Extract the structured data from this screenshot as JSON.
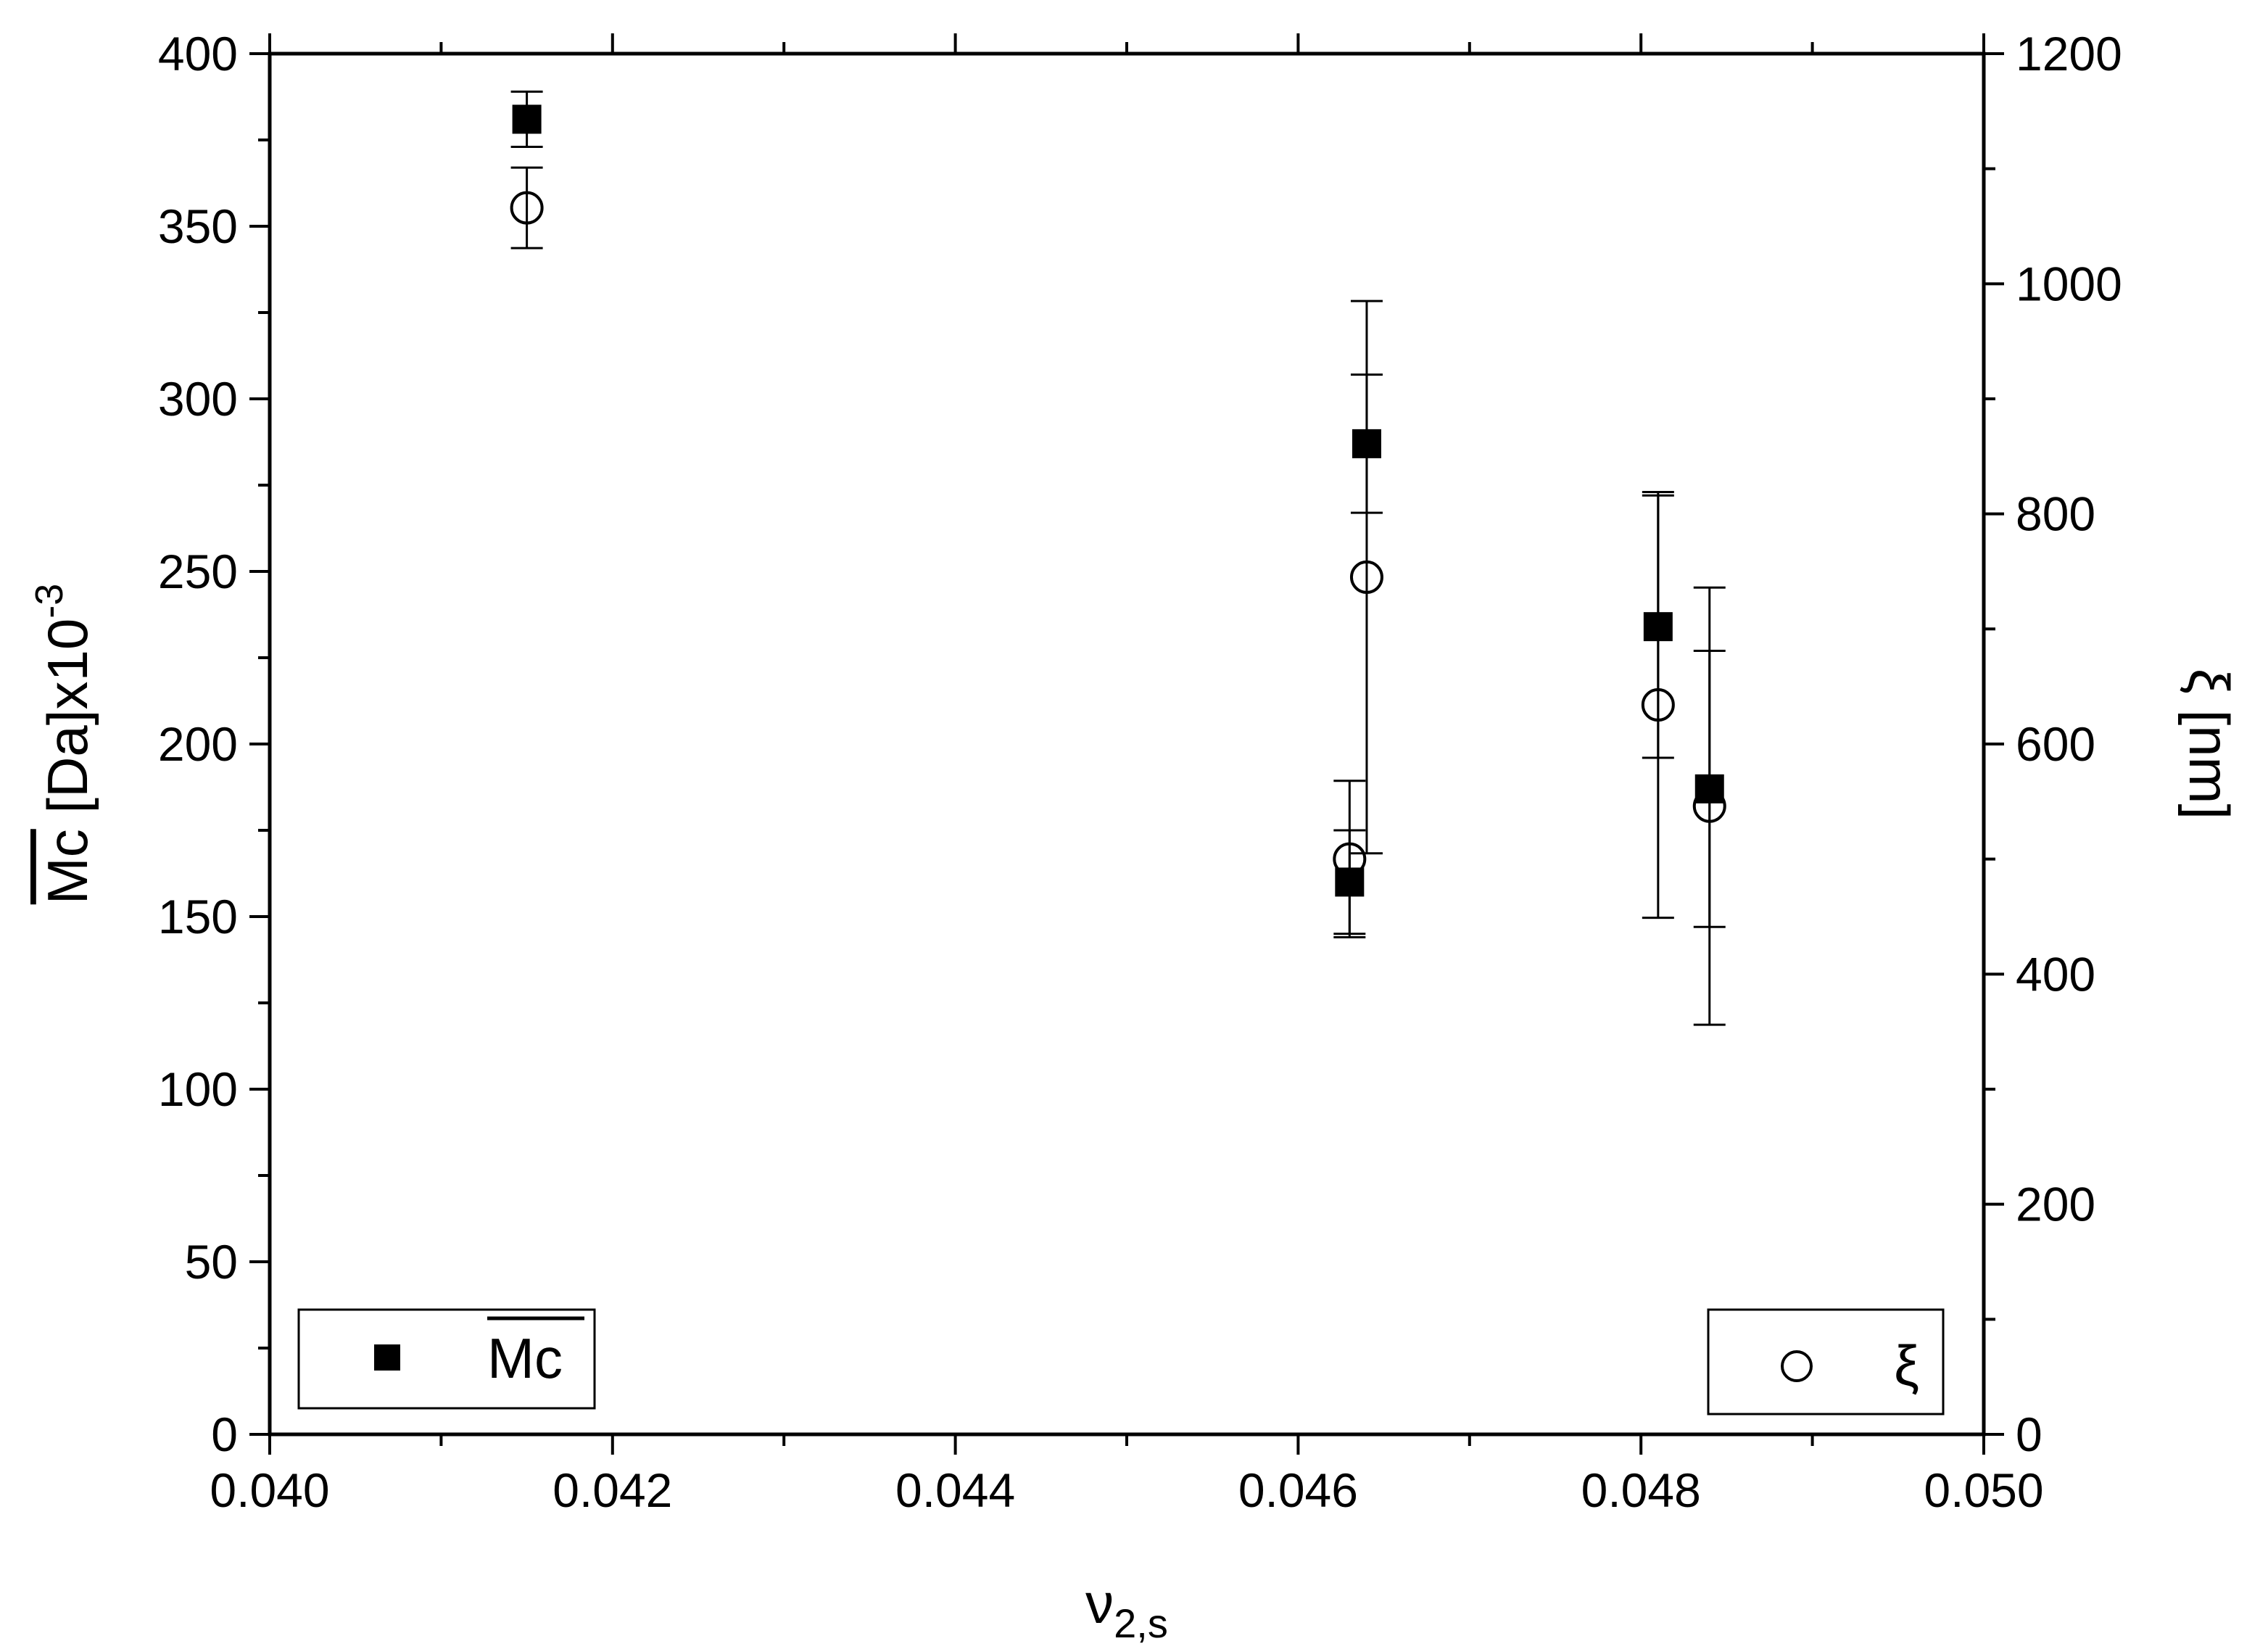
{
  "chart_data": {
    "type": "scatter",
    "xlabel_base": "ν",
    "xlabel_sub": "2,s",
    "ylabel_left_main": "Mc",
    "ylabel_left_unit": " [Da]x10",
    "ylabel_left_exp": "-3",
    "ylabel_right": "ξ [nm]",
    "xlim": [
      0.04,
      0.05
    ],
    "ylim_left": [
      0,
      400
    ],
    "ylim_right": [
      0,
      1200
    ],
    "x_ticks": [
      "0.040",
      "0.042",
      "0.044",
      "0.046",
      "0.048",
      "0.050"
    ],
    "y_left_ticks": [
      "0",
      "50",
      "100",
      "150",
      "200",
      "250",
      "300",
      "350",
      "400"
    ],
    "y_right_ticks": [
      "0",
      "200",
      "400",
      "600",
      "800",
      "1000",
      "1200"
    ],
    "grid": false,
    "series": [
      {
        "name": "Mc",
        "axis": "left",
        "marker": "filled-square",
        "points": [
          {
            "x": 0.0415,
            "y": 381,
            "err": 8
          },
          {
            "x": 0.0463,
            "y": 160,
            "err": 15
          },
          {
            "x": 0.0464,
            "y": 287,
            "err": 20
          },
          {
            "x": 0.0481,
            "y": 234,
            "err": 38
          },
          {
            "x": 0.0484,
            "y": 187,
            "err": 40
          }
        ]
      },
      {
        "name": "ξ",
        "axis": "right",
        "marker": "open-circle",
        "points": [
          {
            "x": 0.0415,
            "y": 1066,
            "err": 35
          },
          {
            "x": 0.0463,
            "y": 500,
            "err": 68
          },
          {
            "x": 0.0464,
            "y": 745,
            "err": 240
          },
          {
            "x": 0.0481,
            "y": 634,
            "err": 185
          },
          {
            "x": 0.0484,
            "y": 546,
            "err": 190
          }
        ]
      }
    ],
    "legend_left_label": "Mc",
    "legend_right_label": "ξ",
    "legend_left_position": "bottom-left",
    "legend_right_position": "bottom-right"
  }
}
